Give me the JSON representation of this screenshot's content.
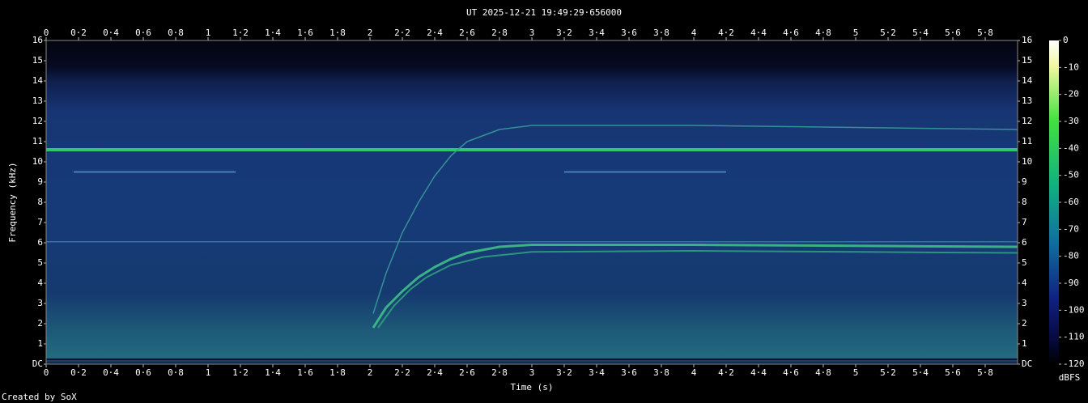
{
  "chart_data": {
    "type": "spectrogram",
    "title": "UT 2025-12-21 19:49:29·656000",
    "xlabel": "Time (s)",
    "ylabel": "Frequency (kHz)",
    "xlim": [
      0,
      6
    ],
    "ylim": [
      0,
      16
    ],
    "xticks": [
      0,
      {
        "value": 0.2,
        "label": "0·2"
      },
      {
        "value": 0.4,
        "label": "0·4"
      },
      {
        "value": 0.6,
        "label": "0·6"
      },
      {
        "value": 0.8,
        "label": "0·8"
      },
      1,
      {
        "value": 1.2,
        "label": "1·2"
      },
      {
        "value": 1.4,
        "label": "1·4"
      },
      {
        "value": 1.6,
        "label": "1·6"
      },
      {
        "value": 1.8,
        "label": "1·8"
      },
      2,
      {
        "value": 2.2,
        "label": "2·2"
      },
      {
        "value": 2.4,
        "label": "2·4"
      },
      {
        "value": 2.6,
        "label": "2·6"
      },
      {
        "value": 2.8,
        "label": "2·8"
      },
      3,
      {
        "value": 3.2,
        "label": "3·2"
      },
      {
        "value": 3.4,
        "label": "3·4"
      },
      {
        "value": 3.6,
        "label": "3·6"
      },
      {
        "value": 3.8,
        "label": "3·8"
      },
      4,
      {
        "value": 4.2,
        "label": "4·2"
      },
      {
        "value": 4.4,
        "label": "4·4"
      },
      {
        "value": 4.6,
        "label": "4·6"
      },
      {
        "value": 4.8,
        "label": "4·8"
      },
      5,
      {
        "value": 5.2,
        "label": "5·2"
      },
      {
        "value": 5.4,
        "label": "5·4"
      },
      {
        "value": 5.6,
        "label": "5·6"
      },
      {
        "value": 5.8,
        "label": "5·8"
      }
    ],
    "yticks": [
      {
        "value": 0,
        "label": "DC"
      },
      1,
      2,
      3,
      4,
      5,
      6,
      7,
      8,
      9,
      10,
      11,
      12,
      13,
      14,
      15,
      16
    ],
    "colorbar": {
      "label": "dBFS",
      "lim": [
        -120,
        0
      ],
      "ticks": [
        0,
        -10,
        -20,
        -30,
        -40,
        -50,
        -60,
        -70,
        -80,
        -90,
        -100,
        -110,
        -120
      ]
    },
    "series": [
      {
        "color": "#2fd86a",
        "width": 4,
        "x": [
          0,
          6
        ],
        "values": [
          10.6,
          10.6
        ]
      },
      {
        "color": "#3f78a8",
        "width": 1.5,
        "x": [
          0,
          6
        ],
        "values": [
          6.05,
          6.05
        ]
      },
      {
        "color": "#4f88b8",
        "width": 2,
        "x": [
          0.17,
          1.17
        ],
        "values": [
          9.5,
          9.5
        ]
      },
      {
        "color": "#4f88b8",
        "width": 2,
        "x": [
          3.2,
          4.2
        ],
        "values": [
          9.5,
          9.5
        ]
      },
      {
        "color": "#3a9a9a",
        "width": 1.5,
        "x": [
          2.02,
          2.1,
          2.2,
          2.3,
          2.4,
          2.5,
          2.6,
          2.8,
          3,
          4,
          5,
          6
        ],
        "values": [
          2.5,
          4.5,
          6.5,
          8,
          9.3,
          10.3,
          11,
          11.6,
          11.8,
          11.8,
          11.7,
          11.6
        ]
      },
      {
        "color": "#3fbf88",
        "width": 3,
        "x": [
          2.02,
          2.1,
          2.2,
          2.3,
          2.4,
          2.5,
          2.6,
          2.8,
          3,
          4,
          5,
          6
        ],
        "values": [
          1.8,
          2.8,
          3.6,
          4.3,
          4.8,
          5.2,
          5.5,
          5.8,
          5.9,
          5.9,
          5.85,
          5.8
        ]
      },
      {
        "color": "#2f9f80",
        "width": 2,
        "x": [
          2.05,
          2.15,
          2.25,
          2.35,
          2.5,
          2.7,
          3,
          4,
          5,
          6
        ],
        "values": [
          1.8,
          2.9,
          3.7,
          4.3,
          4.9,
          5.3,
          5.55,
          5.6,
          5.55,
          5.5
        ]
      }
    ]
  },
  "credit": "Created by SoX"
}
